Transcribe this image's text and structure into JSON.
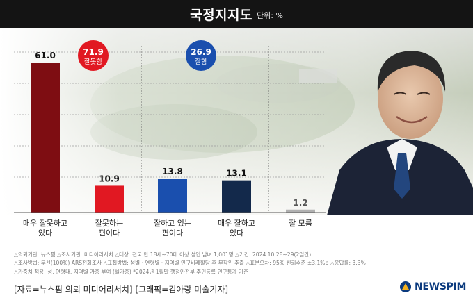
{
  "header": {
    "title": "국정지지도",
    "unit": "단위: %"
  },
  "chart_data": {
    "type": "bar",
    "title": "국정지지도",
    "unit": "단위: %",
    "categories": [
      [
        "매우 잘못하고",
        "있다"
      ],
      [
        "잘못하는",
        "편이다"
      ],
      [
        "잘하고 있는",
        "편이다"
      ],
      [
        "매우 잘하고",
        "있다"
      ],
      [
        "잘 모름"
      ]
    ],
    "values": [
      61.0,
      10.9,
      13.8,
      13.1,
      1.2
    ],
    "value_labels": [
      "61.0",
      "10.9",
      "13.8",
      "13.1",
      "1.2"
    ],
    "bar_colors": [
      "#7e0d12",
      "#e11822",
      "#1a4fae",
      "#13294b",
      "#b0b0b0"
    ],
    "ylim": [
      0,
      65
    ],
    "grid": true,
    "summaries": [
      {
        "value": "71.9",
        "label": "잘못함",
        "color": "#e11822"
      },
      {
        "value": "26.9",
        "label": "잘함",
        "color": "#1a4fae"
      }
    ]
  },
  "notes": [
    "△의뢰기관: 뉴스핌  △조사기관: 미디어리서치  △대상: 전국 만 18세~70대 이상 성인 남녀 1,001명  △기간: 2024.10.28~29(2일간)",
    "△조사방법: 무선(100%) ARS전화조사  △표집방법: 성별 · 연령별 · 지역별 인구비례할당 후 무작위 추출  △표본오차: 95% 신뢰수준 ±3.1%p  △응답률: 3.3%",
    "△가중치 적용: 성, 연령대, 지역별 가중 부여 (셀가중) *2024년 1월말 행정안전부 주민등록 인구통계 기준"
  ],
  "source": "[자료=뉴스핌 의뢰 미디어리서치] [그래픽=김아랑 미술기자]",
  "logo": {
    "text": "NEWSPIM",
    "icon": "newspim-logo-icon"
  }
}
